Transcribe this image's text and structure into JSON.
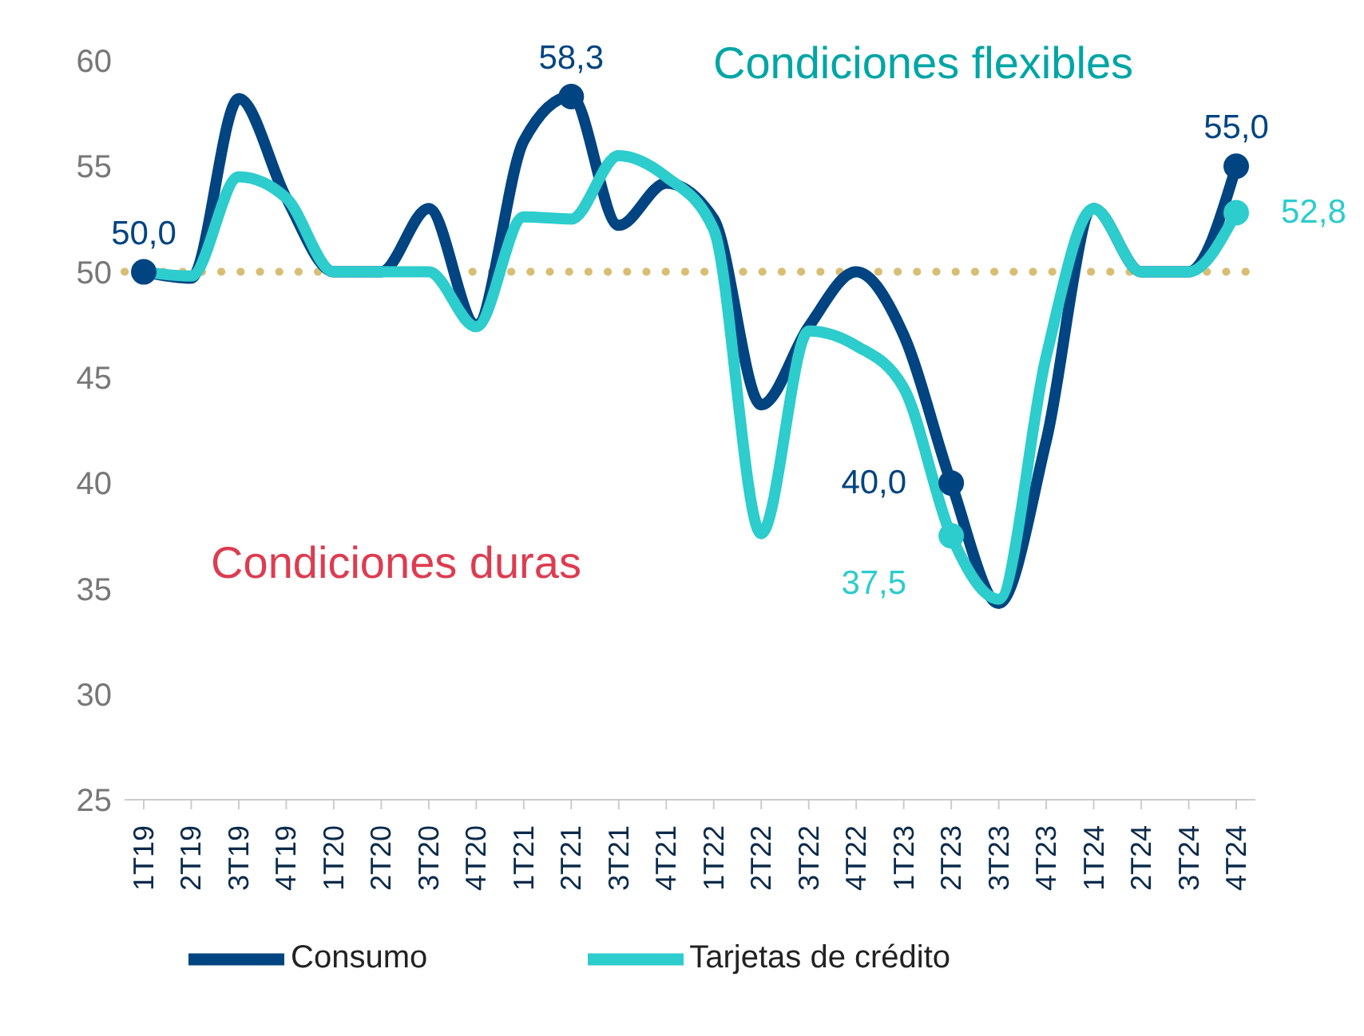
{
  "chart_data": {
    "type": "line",
    "categories": [
      "1T19",
      "2T19",
      "3T19",
      "4T19",
      "1T20",
      "2T20",
      "3T20",
      "4T20",
      "1T21",
      "2T21",
      "3T21",
      "4T21",
      "1T22",
      "2T22",
      "3T22",
      "4T22",
      "1T23",
      "2T23",
      "3T23",
      "4T23",
      "1T24",
      "2T24",
      "3T24",
      "4T24"
    ],
    "series": [
      {
        "name": "Consumo",
        "color": "#004481",
        "values": [
          50.0,
          49.7,
          58.2,
          53.5,
          50,
          50,
          53,
          47.5,
          56.2,
          58.3,
          52.2,
          54.2,
          52.5,
          43.7,
          47.4,
          50,
          47,
          40.0,
          34.3,
          42,
          53,
          50,
          50,
          55.0
        ],
        "value_labels": [
          "50,0",
          null,
          null,
          null,
          null,
          null,
          null,
          null,
          null,
          "58,3",
          null,
          null,
          null,
          null,
          null,
          null,
          null,
          "40,0",
          null,
          null,
          null,
          null,
          null,
          "55,0"
        ]
      },
      {
        "name": "Tarjetas de crédito",
        "color": "#2dcccd",
        "values": [
          50,
          49.8,
          54.5,
          53.5,
          50,
          50,
          50,
          47.4,
          52.6,
          52.5,
          55.5,
          54.5,
          52,
          37.6,
          47.2,
          46.5,
          44.5,
          37.5,
          34.5,
          46,
          53,
          50,
          50,
          52.8
        ],
        "value_labels": [
          null,
          null,
          null,
          null,
          null,
          null,
          null,
          null,
          null,
          null,
          null,
          null,
          null,
          null,
          null,
          null,
          null,
          "37,5",
          null,
          null,
          null,
          null,
          null,
          "52,8"
        ]
      }
    ],
    "ylim": [
      25,
      60
    ],
    "yticks": [
      25,
      30,
      35,
      40,
      45,
      50,
      55,
      60
    ],
    "ref_lines": [
      {
        "axis": "y",
        "value": 50,
        "color": "#d8be74",
        "line_style": "dotted"
      }
    ],
    "annotations": [
      "Condiciones flexibles",
      "Condiciones duras"
    ],
    "legend": "bottom",
    "marker": "none",
    "line_style": "solid"
  }
}
